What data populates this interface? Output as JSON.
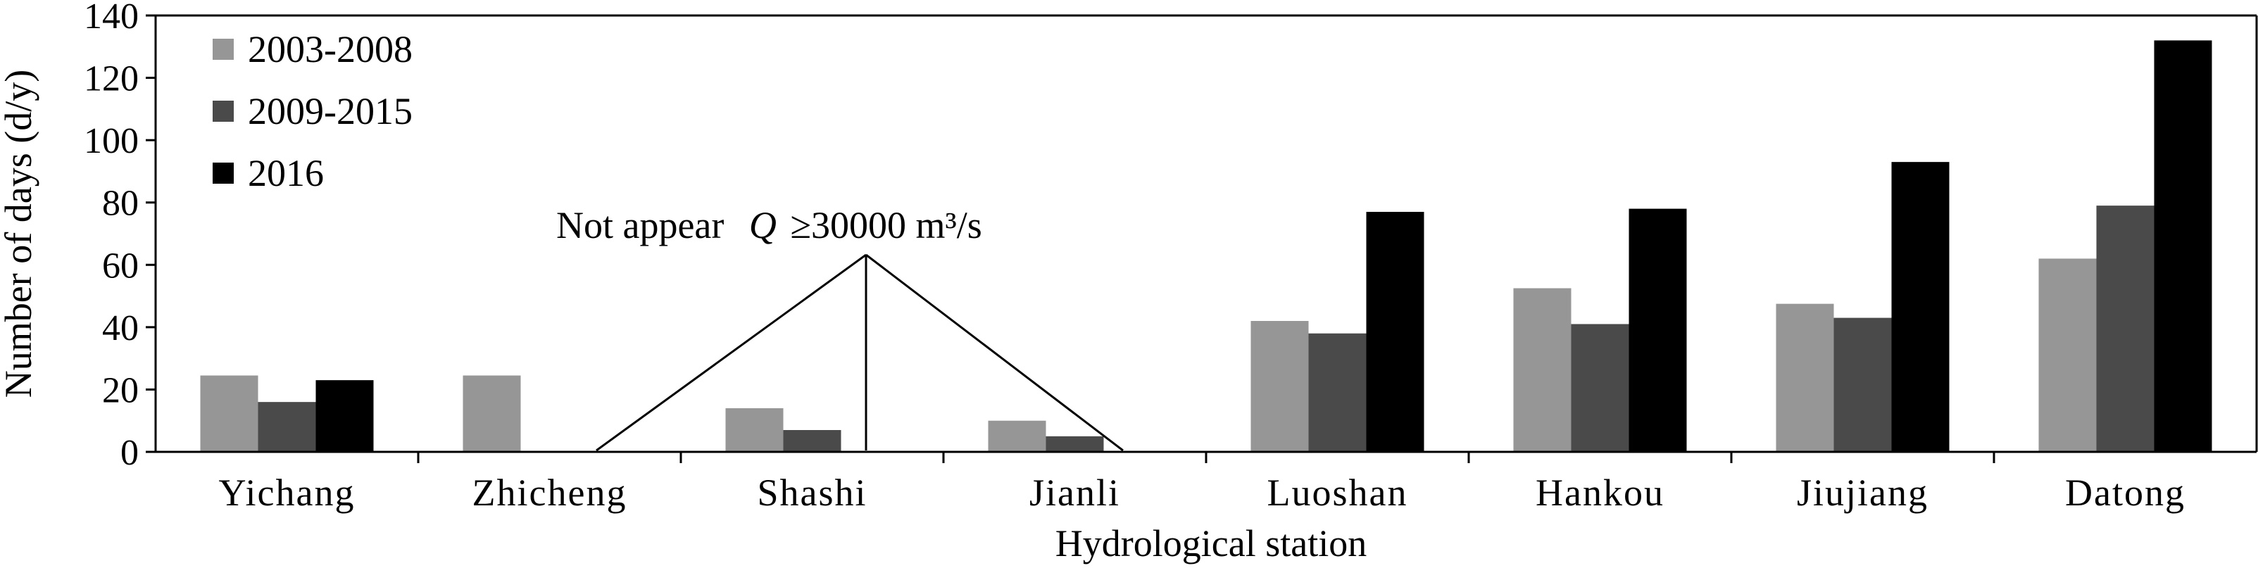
{
  "chart_data": {
    "type": "bar",
    "title": "",
    "xlabel": "Hydrological station",
    "ylabel": "Number of days (d/y)",
    "ylim": [
      0,
      140
    ],
    "yticks": [
      0,
      20,
      40,
      60,
      80,
      100,
      120,
      140
    ],
    "categories": [
      "Yichang",
      "Zhicheng",
      "Shashi",
      "Jianli",
      "Luoshan",
      "Hankou",
      "Jiujiang",
      "Datong"
    ],
    "series": [
      {
        "name": "2003-2008",
        "color": "#969696",
        "values": [
          24.5,
          24.5,
          14,
          10,
          42,
          52.5,
          47.5,
          62
        ]
      },
      {
        "name": "2009-2015",
        "color": "#4a4a4a",
        "values": [
          16,
          null,
          7,
          5,
          38,
          41,
          43,
          79
        ]
      },
      {
        "name": "2016",
        "color": "#000000",
        "values": [
          23,
          null,
          null,
          null,
          77,
          78,
          93,
          132
        ]
      }
    ],
    "legend_position": "top-left",
    "grid": false,
    "annotation": {
      "text_prefix": "Not appear",
      "symbol": "Q",
      "text_suffix": "≥30000 m³/s"
    }
  }
}
